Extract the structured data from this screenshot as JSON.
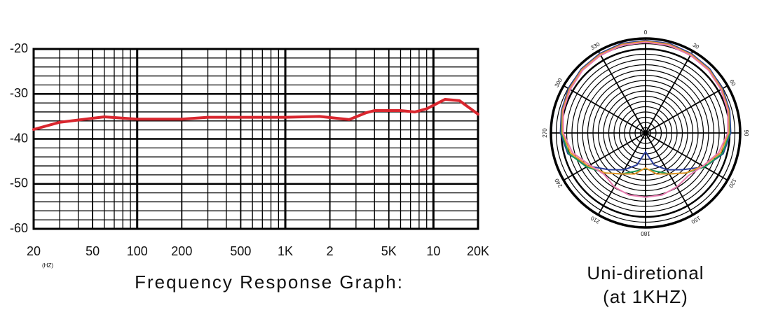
{
  "chart_data": [
    {
      "type": "line",
      "title": "Frequency Response Graph:",
      "x_unit_label": "(HZ)",
      "log_x": true,
      "grid": true,
      "xlim": [
        20,
        20000
      ],
      "xticks": [
        20,
        50,
        100,
        200,
        500,
        {
          "value": 1000,
          "label": "1K"
        },
        {
          "value": 2000,
          "label": "2"
        },
        {
          "value": 5000,
          "label": "5K"
        },
        {
          "value": 10000,
          "label": "10"
        },
        {
          "value": 20000,
          "label": "20K"
        }
      ],
      "ylim": [
        -60,
        -20
      ],
      "yticks": [
        -20,
        -30,
        -40,
        -50,
        -60
      ],
      "x": [
        20,
        30,
        60,
        100,
        200,
        300,
        1000,
        1700,
        2700,
        3500,
        4000,
        6000,
        7500,
        9000,
        12000,
        15000,
        20000
      ],
      "series": [
        {
          "color": "#d8262e",
          "values": [
            -37.9,
            -36.3,
            -35.1,
            -35.6,
            -35.6,
            -35.2,
            -35.2,
            -35.0,
            -35.7,
            -34.2,
            -33.7,
            -33.7,
            -34.0,
            -33.3,
            -31.2,
            -31.5,
            -34.5
          ]
        }
      ]
    },
    {
      "type": "polar",
      "title": "Uni-diretional",
      "subtitle": "(at 1KHZ)",
      "angle_ticks": [
        0,
        30,
        60,
        90,
        120,
        150,
        180,
        210,
        240,
        270,
        300,
        330
      ],
      "theta": [
        0,
        15,
        30,
        45,
        60,
        75,
        90,
        105,
        120,
        135,
        150,
        165,
        180,
        195,
        210,
        225,
        240,
        255,
        270,
        285,
        300,
        315,
        330,
        345
      ],
      "series": [
        {
          "color": "#2c3e9c",
          "values": [
            0.98,
            0.98,
            0.97,
            0.96,
            0.94,
            0.92,
            0.9,
            0.85,
            0.72,
            0.55,
            0.45,
            0.35,
            0.2,
            0.35,
            0.45,
            0.55,
            0.7,
            0.85,
            0.9,
            0.92,
            0.94,
            0.96,
            0.97,
            0.98
          ]
        },
        {
          "color": "#1a9a5a",
          "values": [
            0.97,
            0.97,
            0.96,
            0.95,
            0.93,
            0.91,
            0.89,
            0.84,
            0.72,
            0.6,
            0.5,
            0.42,
            0.38,
            0.42,
            0.5,
            0.6,
            0.72,
            0.84,
            0.89,
            0.91,
            0.93,
            0.95,
            0.96,
            0.97
          ]
        },
        {
          "color": "#e8962a",
          "values": [
            0.97,
            0.97,
            0.96,
            0.95,
            0.93,
            0.91,
            0.88,
            0.82,
            0.7,
            0.6,
            0.5,
            0.45,
            0.37,
            0.45,
            0.5,
            0.6,
            0.7,
            0.82,
            0.88,
            0.91,
            0.93,
            0.95,
            0.96,
            0.97
          ]
        },
        {
          "color": "#e87ab0",
          "values": [
            0.96,
            0.96,
            0.95,
            0.94,
            0.92,
            0.9,
            0.87,
            0.8,
            0.7,
            0.64,
            0.66,
            0.68,
            0.68,
            0.68,
            0.66,
            0.62,
            0.68,
            0.8,
            0.87,
            0.9,
            0.92,
            0.94,
            0.95,
            0.96
          ]
        }
      ]
    }
  ]
}
